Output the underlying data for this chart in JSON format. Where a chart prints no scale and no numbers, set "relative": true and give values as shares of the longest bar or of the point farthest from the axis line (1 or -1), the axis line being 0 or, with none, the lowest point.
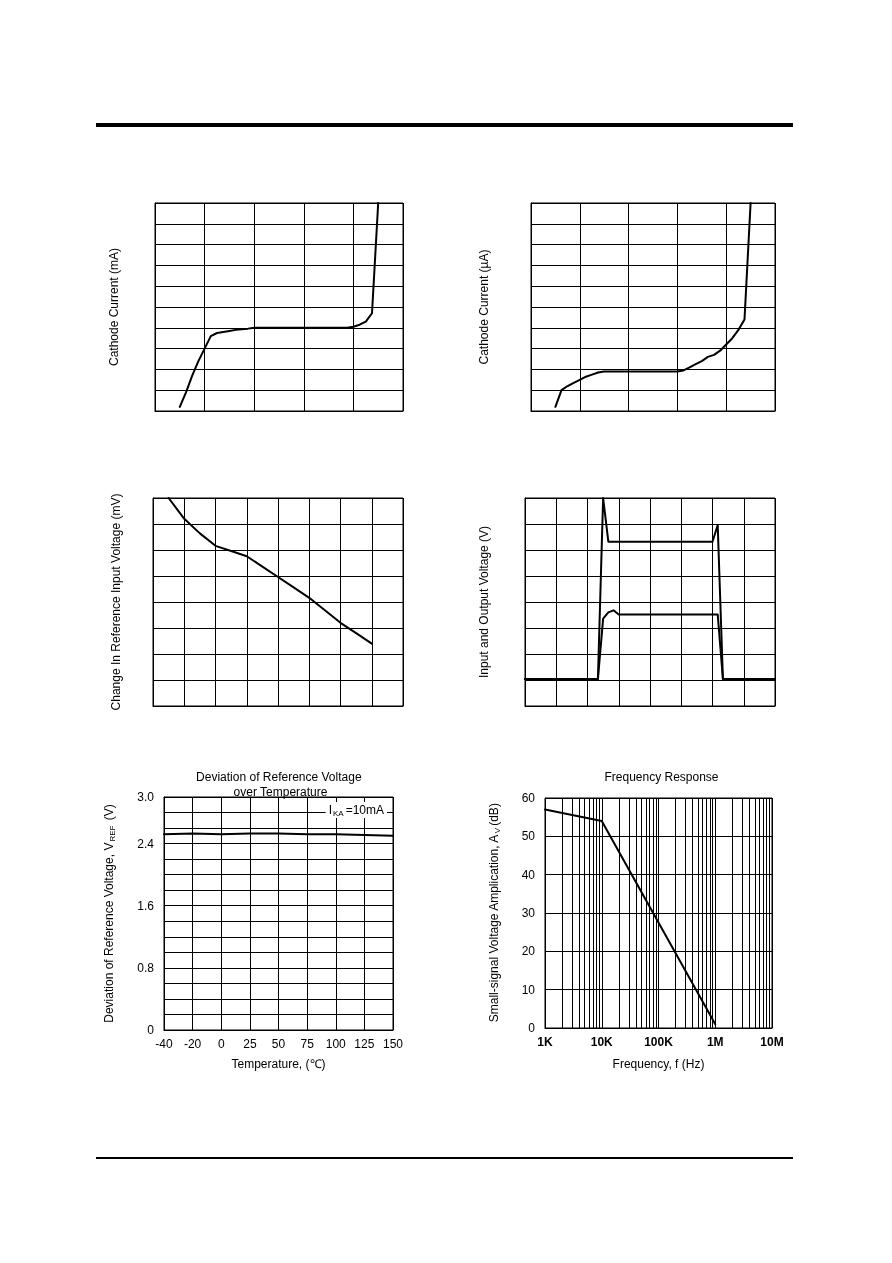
{
  "chart_data": [
    {
      "type": "line",
      "relative": true,
      "ylabel": "Cathode Current (mA)",
      "grid": true,
      "categories": [
        null,
        null,
        null,
        null,
        null,
        null,
        null,
        null,
        null,
        null,
        null,
        null,
        null,
        null,
        null,
        null,
        null,
        null,
        null,
        null,
        null,
        null,
        null,
        null,
        null,
        null,
        null,
        null,
        null,
        null,
        null,
        null,
        null,
        null,
        null,
        null,
        null,
        null,
        null,
        null,
        null
      ],
      "series": [
        {
          "color": "#000000",
          "values": [
            null,
            null,
            null,
            null,
            0.02,
            0.09,
            0.17,
            0.24,
            0.3,
            0.36,
            0.375,
            0.38,
            0.385,
            0.39,
            0.393,
            0.396,
            0.4,
            0.4,
            0.4,
            0.4,
            0.4,
            0.4,
            0.4,
            0.4,
            0.4,
            0.4,
            0.4,
            0.4,
            0.4,
            0.4,
            0.4,
            0.4,
            0.405,
            0.415,
            0.43,
            0.47,
            1,
            null,
            null,
            null,
            null
          ]
        }
      ]
    },
    {
      "type": "line",
      "relative": true,
      "ylabel": "Cathode Current (µA)",
      "grid": true,
      "categories": [
        null,
        null,
        null,
        null,
        null,
        null,
        null,
        null,
        null,
        null,
        null,
        null,
        null,
        null,
        null,
        null,
        null,
        null,
        null,
        null,
        null,
        null,
        null,
        null,
        null,
        null,
        null,
        null,
        null,
        null,
        null,
        null,
        null,
        null,
        null,
        null,
        null,
        null,
        null,
        null,
        null
      ],
      "series": [
        {
          "color": "#000000",
          "values": [
            null,
            null,
            null,
            null,
            0.02,
            0.1,
            0.12,
            0.135,
            0.15,
            0.165,
            0.175,
            0.185,
            0.19,
            0.19,
            0.19,
            0.19,
            0.19,
            0.19,
            0.19,
            0.19,
            0.19,
            0.19,
            0.19,
            0.19,
            0.19,
            0.195,
            0.21,
            0.225,
            0.24,
            0.26,
            0.27,
            0.29,
            0.32,
            0.35,
            0.39,
            0.44,
            1,
            null,
            null,
            null,
            null
          ]
        }
      ]
    },
    {
      "type": "line",
      "relative": true,
      "ylabel": "Change In Reference Input Voltage (mV)",
      "grid": true,
      "categories": [
        null,
        null,
        null,
        null,
        null,
        null,
        null,
        null,
        null,
        null,
        null,
        null,
        null,
        null,
        null,
        null,
        null
      ],
      "series": [
        {
          "color": "#000000",
          "values": [
            null,
            1.0,
            0.9,
            0.83,
            0.77,
            0.745,
            0.72,
            0.67,
            0.62,
            0.57,
            0.52,
            0.46,
            0.4,
            0.35,
            0.3,
            null,
            null
          ]
        }
      ]
    },
    {
      "type": "line",
      "relative": true,
      "ylabel": "Input and Output Voltage (V)",
      "grid": true,
      "categories": [
        null,
        null,
        null,
        null,
        null,
        null,
        null,
        null,
        null,
        null,
        null,
        null,
        null,
        null,
        null,
        null,
        null,
        null,
        null,
        null,
        null,
        null,
        null,
        null,
        null,
        null,
        null,
        null,
        null,
        null,
        null,
        null,
        null,
        null,
        null,
        null,
        null,
        null,
        null,
        null,
        null,
        null,
        null,
        null,
        null,
        null,
        null,
        null,
        null
      ],
      "series": [
        {
          "color": "#000000",
          "values": [
            0.13,
            0.13,
            0.13,
            0.13,
            0.13,
            0.13,
            0.13,
            0.13,
            0.13,
            0.13,
            0.13,
            0.13,
            0.13,
            0.13,
            0.13,
            1,
            0.79,
            0.79,
            0.79,
            0.79,
            0.79,
            0.79,
            0.79,
            0.79,
            0.79,
            0.79,
            0.79,
            0.79,
            0.79,
            0.79,
            0.79,
            0.79,
            0.79,
            0.79,
            0.79,
            0.79,
            0.79,
            0.87,
            0.13,
            0.13,
            0.13,
            0.13,
            0.13,
            0.13,
            0.13,
            0.13,
            0.13,
            0.13,
            0.13
          ]
        },
        {
          "color": "#000000",
          "values": [
            0.13,
            0.13,
            0.13,
            0.13,
            0.13,
            0.13,
            0.13,
            0.13,
            0.13,
            0.13,
            0.13,
            0.13,
            0.13,
            0.13,
            0.13,
            0.42,
            0.45,
            0.46,
            0.44,
            0.44,
            0.44,
            0.44,
            0.44,
            0.44,
            0.44,
            0.44,
            0.44,
            0.44,
            0.44,
            0.44,
            0.44,
            0.44,
            0.44,
            0.44,
            0.44,
            0.44,
            0.44,
            0.44,
            0.13,
            0.13,
            0.13,
            0.13,
            0.13,
            0.13,
            0.13,
            0.13,
            0.13,
            0.13,
            0.13
          ]
        }
      ]
    },
    {
      "type": "line",
      "title": "Deviation of Reference Voltage over Temperature",
      "xlabel": "Temperature, (℃)",
      "ylabel": "Deviation of Reference Voltage, V$_{REF}$ (V)",
      "grid": true,
      "categories": [
        "-40",
        "-20",
        "0",
        "25",
        "50",
        "75",
        "100",
        "125",
        "150"
      ],
      "values": [
        2.52,
        2.53,
        2.52,
        2.53,
        2.53,
        2.52,
        2.52,
        2.51,
        2.5
      ],
      "color": "#000000",
      "ylim": [
        0,
        3
      ],
      "yticks": [
        0,
        {
          "value": 0.2,
          "label": null
        },
        {
          "value": 0.4,
          "label": null
        },
        {
          "value": 0.6,
          "label": null
        },
        0.8,
        {
          "value": 1.0,
          "label": null
        },
        {
          "value": 1.2,
          "label": null
        },
        {
          "value": 1.4,
          "label": null
        },
        1.6,
        {
          "value": 1.8,
          "label": null
        },
        {
          "value": 2.0,
          "label": null
        },
        {
          "value": 2.2,
          "label": null
        },
        2.4,
        {
          "value": 2.6,
          "label": null
        },
        {
          "value": 2.8,
          "label": null
        },
        {
          "value": 3,
          "label": "3.0"
        }
      ],
      "annotations": [
        "I$_{KA}$=10mA"
      ]
    },
    {
      "type": "line",
      "title": "Frequency Response",
      "xlabel": "Frequency, f (Hz)",
      "ylabel": "Small-signal Voltage Amplication, A$_{V}$(dB)",
      "grid": true,
      "log": "x",
      "x": [
        1000,
        10000,
        1000000
      ],
      "values": [
        57,
        54,
        1
      ],
      "color": "#000000",
      "xlim": [
        1000,
        10000000
      ],
      "xticks": [
        {
          "value": 1000,
          "label": "1K"
        },
        {
          "value": 2000,
          "label": null
        },
        {
          "value": 3000,
          "label": null
        },
        {
          "value": 4000,
          "label": null
        },
        {
          "value": 5000,
          "label": null
        },
        {
          "value": 6000,
          "label": null
        },
        {
          "value": 7000,
          "label": null
        },
        {
          "value": 8000,
          "label": null
        },
        {
          "value": 9000,
          "label": null
        },
        {
          "value": 10000,
          "label": "10K"
        },
        {
          "value": 20000,
          "label": null
        },
        {
          "value": 30000,
          "label": null
        },
        {
          "value": 40000,
          "label": null
        },
        {
          "value": 50000,
          "label": null
        },
        {
          "value": 60000,
          "label": null
        },
        {
          "value": 70000,
          "label": null
        },
        {
          "value": 80000,
          "label": null
        },
        {
          "value": 90000,
          "label": null
        },
        {
          "value": 100000,
          "label": "100K"
        },
        {
          "value": 200000,
          "label": null
        },
        {
          "value": 300000,
          "label": null
        },
        {
          "value": 400000,
          "label": null
        },
        {
          "value": 500000,
          "label": null
        },
        {
          "value": 600000,
          "label": null
        },
        {
          "value": 700000,
          "label": null
        },
        {
          "value": 800000,
          "label": null
        },
        {
          "value": 900000,
          "label": null
        },
        {
          "value": 1000000,
          "label": "1M"
        },
        {
          "value": 2000000,
          "label": null
        },
        {
          "value": 3000000,
          "label": null
        },
        {
          "value": 4000000,
          "label": null
        },
        {
          "value": 5000000,
          "label": null
        },
        {
          "value": 6000000,
          "label": null
        },
        {
          "value": 7000000,
          "label": null
        },
        {
          "value": 8000000,
          "label": null
        },
        {
          "value": 9000000,
          "label": null
        },
        {
          "value": 10000000,
          "label": "10M"
        }
      ],
      "ylim": [
        0,
        60
      ],
      "yticks": [
        0,
        10,
        20,
        30,
        40,
        50,
        60
      ]
    }
  ]
}
